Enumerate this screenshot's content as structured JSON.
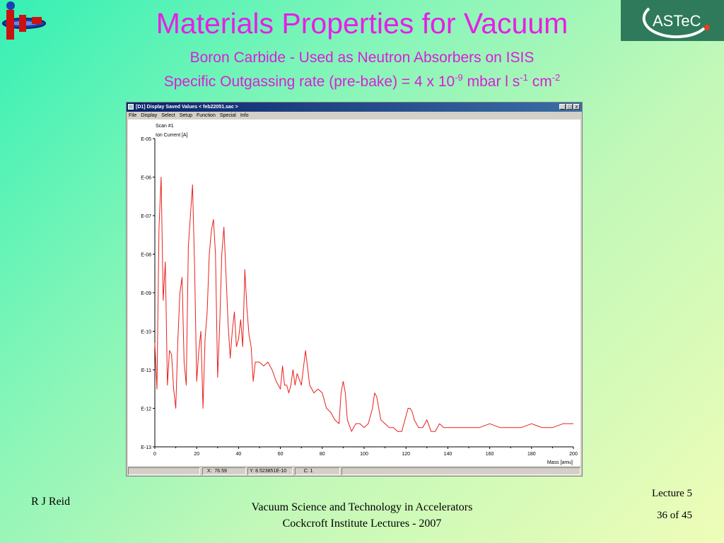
{
  "slide": {
    "title": "Materials Properties for Vacuum",
    "subtitle1": "Boron Carbide - Used as Neutron Absorbers on ISIS",
    "subtitle2_prefix": "Specific Outgassing rate (pre-bake) = 4 x 10",
    "subtitle2_exp1": "-9",
    "subtitle2_mid": " mbar l s",
    "subtitle2_exp2": "-1",
    "subtitle2_mid2": " cm",
    "subtitle2_exp3": "-2",
    "logo_text": "ASTeC"
  },
  "window": {
    "title": "[D1] Display Saved Values  < feb22051.sac >",
    "controls": [
      "_",
      "□",
      "x"
    ],
    "menu": [
      "File",
      "Display",
      "Select",
      "Setup",
      "Function",
      "Special",
      "Info"
    ],
    "status": {
      "x_label": "X:",
      "x_value": "76.59",
      "y_label": "Y:",
      "y_value": "8.523851E-10",
      "c_label": "C:",
      "c_value": "1"
    }
  },
  "footer": {
    "author": "R J Reid",
    "course_line1": "Vacuum Science and Technology in Accelerators",
    "course_line2": "Cockcroft Institute Lectures - 2007",
    "lecture": "Lecture 5",
    "page": "36 of 45"
  },
  "chart_data": {
    "type": "line",
    "title": "Scan #1",
    "ylabel": "Ion Current [A]",
    "xlabel": "Mass [amu]",
    "xlim": [
      0,
      200
    ],
    "ylim_log10": [
      -13,
      -5
    ],
    "x_ticks": [
      "0",
      "20",
      "40",
      "60",
      "80",
      "100",
      "120",
      "140",
      "160",
      "180",
      "200"
    ],
    "y_ticks": [
      "E-05",
      "E-06",
      "E-07",
      "E-08",
      "E-09",
      "E-10",
      "E-11",
      "E-12",
      "E-13"
    ],
    "line_color": "#e8201a",
    "series": [
      {
        "x": [
          0,
          1,
          2,
          3,
          4,
          5,
          6,
          7,
          8,
          9,
          10,
          11,
          12,
          13,
          14,
          15,
          16,
          17,
          18,
          19,
          20,
          21,
          22,
          23,
          24,
          25,
          26,
          27,
          28,
          29,
          30,
          31,
          32,
          33,
          34,
          35,
          36,
          37,
          38,
          39,
          40,
          41,
          42,
          43,
          44,
          45,
          46,
          47,
          48,
          50,
          52,
          54,
          56,
          58,
          60,
          61,
          62,
          63,
          64,
          65,
          66,
          67,
          68,
          70,
          72,
          74,
          76,
          78,
          80,
          82,
          84,
          86,
          88,
          89,
          90,
          91,
          92,
          94,
          96,
          98,
          100,
          102,
          104,
          105,
          106,
          107,
          108,
          110,
          112,
          114,
          116,
          118,
          120,
          121,
          122,
          123,
          124,
          126,
          128,
          130,
          132,
          134,
          136,
          138,
          140,
          145,
          150,
          155,
          160,
          165,
          170,
          175,
          180,
          185,
          190,
          195,
          200
        ],
        "y": [
          -10.3,
          -11.5,
          -7.3,
          -6.0,
          -9.2,
          -8.2,
          -11.4,
          -10.5,
          -10.6,
          -11.5,
          -12.0,
          -10.2,
          -9.0,
          -8.6,
          -10.8,
          -11.4,
          -7.8,
          -7.0,
          -6.2,
          -8.3,
          -11.3,
          -10.5,
          -10.0,
          -12.0,
          -10.2,
          -9.5,
          -8.0,
          -7.4,
          -7.1,
          -8.0,
          -11.2,
          -9.8,
          -8.0,
          -7.3,
          -8.5,
          -9.8,
          -10.7,
          -10.0,
          -9.5,
          -10.4,
          -10.2,
          -9.7,
          -10.4,
          -8.4,
          -9.4,
          -10.1,
          -10.4,
          -11.3,
          -10.8,
          -10.8,
          -10.9,
          -10.8,
          -11.0,
          -11.3,
          -11.5,
          -10.9,
          -11.4,
          -11.4,
          -11.6,
          -11.4,
          -11.0,
          -11.4,
          -11.1,
          -11.4,
          -10.5,
          -11.4,
          -11.6,
          -11.5,
          -11.6,
          -12.0,
          -12.1,
          -12.3,
          -12.4,
          -11.6,
          -11.3,
          -11.6,
          -12.3,
          -12.6,
          -12.4,
          -12.4,
          -12.5,
          -12.4,
          -12.0,
          -11.6,
          -11.7,
          -12.0,
          -12.3,
          -12.4,
          -12.5,
          -12.5,
          -12.6,
          -12.6,
          -12.2,
          -12.0,
          -12.0,
          -12.1,
          -12.3,
          -12.5,
          -12.5,
          -12.3,
          -12.6,
          -12.6,
          -12.4,
          -12.5,
          -12.5,
          -12.5,
          -12.5,
          -12.5,
          -12.4,
          -12.5,
          -12.5,
          -12.5,
          -12.4,
          -12.5,
          -12.5,
          -12.4,
          -12.4
        ]
      }
    ]
  }
}
